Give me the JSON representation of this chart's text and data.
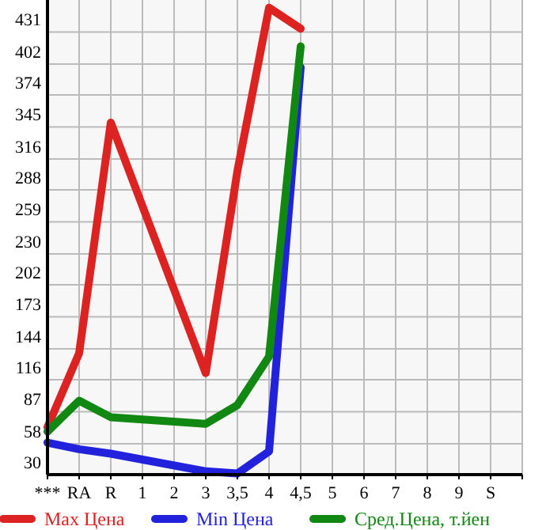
{
  "chart_data": {
    "type": "line",
    "categories": [
      "***",
      "RA",
      "R",
      "1",
      "2",
      "3",
      "3,5",
      "4",
      "4,5",
      "5",
      "6",
      "7",
      "8",
      "9",
      "S",
      null
    ],
    "series": [
      {
        "name": "Max Цена",
        "color": "#dd2222",
        "values": [
          73,
          140,
          349,
          null,
          null,
          122,
          305,
          453,
          434,
          null,
          null,
          null,
          null,
          null,
          null,
          null
        ]
      },
      {
        "name": "Min Цена",
        "color": "#2222dd",
        "values": [
          59,
          53,
          49,
          null,
          null,
          33,
          31,
          51,
          399,
          null,
          null,
          null,
          null,
          null,
          null,
          null
        ]
      },
      {
        "name": "Сред.Цена, т.йен",
        "color": "#118811",
        "values": [
          69,
          97,
          82,
          null,
          null,
          76,
          93,
          137,
          418,
          null,
          null,
          null,
          null,
          null,
          null,
          null
        ]
      }
    ],
    "ylim": [
      30,
      460
    ],
    "yticks": [
      30,
      58,
      87,
      116,
      144,
      173,
      202,
      230,
      259,
      288,
      316,
      345,
      374,
      402,
      431
    ],
    "grid": true,
    "legend": "bottom",
    "marker": "none",
    "line_style": "solid"
  }
}
